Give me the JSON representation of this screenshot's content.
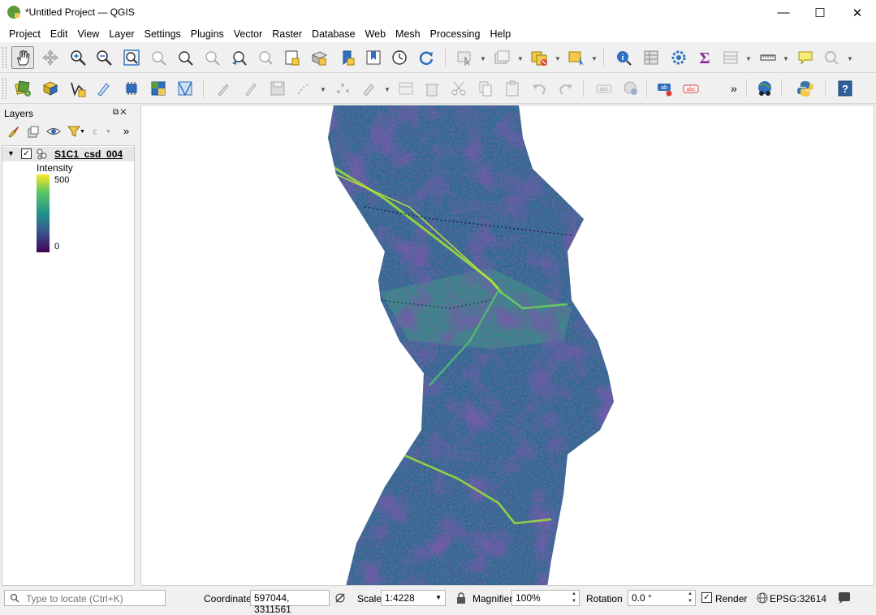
{
  "window": {
    "title": "*Untitled Project — QGIS",
    "controls": {
      "minimize": "—",
      "maximize": "☐",
      "close": "✕"
    }
  },
  "menubar": {
    "items": [
      "Project",
      "Edit",
      "View",
      "Layer",
      "Settings",
      "Plugins",
      "Vector",
      "Raster",
      "Database",
      "Web",
      "Mesh",
      "Processing",
      "Help"
    ]
  },
  "toolbar_overflow": "»",
  "layers_panel": {
    "title": "Layers",
    "header_buttons": "⧉✕",
    "overflow": "»",
    "layer": {
      "name": "S1C1_csd_004",
      "checked": "✓",
      "expander": "▼",
      "legend": {
        "title": "Intensity",
        "max": "500",
        "min": "0"
      }
    }
  },
  "statusbar": {
    "locator_placeholder": "Type to locate (Ctrl+K)",
    "coordinate_label": "Coordinate",
    "coordinate_value": "597044, 3311561",
    "scale_label": "Scale",
    "scale_value": "1:4228",
    "magnifier_label": "Magnifier",
    "magnifier_value": "100%",
    "rotation_label": "Rotation",
    "rotation_value": "0.0 °",
    "render_label": "Render",
    "render_checked": "✓",
    "crs": "EPSG:32614"
  },
  "colors": {
    "viridis_high": "#fde725",
    "viridis_mid": "#21918c",
    "viridis_low": "#440154",
    "accent_blue": "#2f6fc1"
  }
}
